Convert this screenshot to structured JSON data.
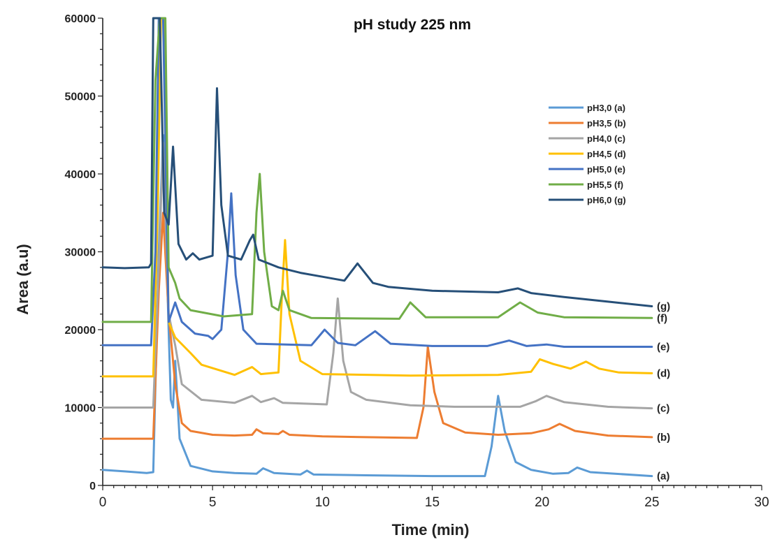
{
  "chart_data": {
    "type": "line",
    "title": "pH study 225 nm",
    "xlabel": "Time (min)",
    "ylabel": "Area (a.u)",
    "xlim": [
      0,
      30
    ],
    "ylim": [
      0,
      60000
    ],
    "xticks": [
      "0",
      "5",
      "10",
      "15",
      "20",
      "25",
      "30"
    ],
    "yticks": [
      "0",
      "10000",
      "20000",
      "30000",
      "40000",
      "50000",
      "60000"
    ],
    "legend_position": "top-right",
    "grid": false,
    "series": [
      {
        "name": "pH3,0 (a)",
        "label": "(a)",
        "color": "#5B9BD5",
        "points": [
          [
            0,
            2000
          ],
          [
            1,
            1800
          ],
          [
            2,
            1600
          ],
          [
            2.3,
            1700
          ],
          [
            2.55,
            30000
          ],
          [
            2.75,
            45000
          ],
          [
            3.0,
            20000
          ],
          [
            3.1,
            11000
          ],
          [
            3.2,
            10000
          ],
          [
            3.3,
            16000
          ],
          [
            3.5,
            6000
          ],
          [
            4.0,
            2500
          ],
          [
            5.0,
            1800
          ],
          [
            6.0,
            1600
          ],
          [
            7.0,
            1500
          ],
          [
            7.3,
            2200
          ],
          [
            7.8,
            1600
          ],
          [
            9.0,
            1400
          ],
          [
            9.3,
            1900
          ],
          [
            9.6,
            1400
          ],
          [
            12,
            1300
          ],
          [
            15,
            1200
          ],
          [
            17.4,
            1200
          ],
          [
            17.7,
            5000
          ],
          [
            18.0,
            11500
          ],
          [
            18.3,
            7000
          ],
          [
            18.8,
            3000
          ],
          [
            19.5,
            2000
          ],
          [
            20.5,
            1500
          ],
          [
            21.2,
            1600
          ],
          [
            21.6,
            2300
          ],
          [
            22.2,
            1700
          ],
          [
            25,
            1200
          ]
        ]
      },
      {
        "name": "pH3,5 (b)",
        "label": "(b)",
        "color": "#ED7D31",
        "points": [
          [
            0,
            6000
          ],
          [
            1,
            6000
          ],
          [
            2.3,
            6000
          ],
          [
            2.55,
            25000
          ],
          [
            2.75,
            35000
          ],
          [
            3.0,
            22000
          ],
          [
            3.3,
            13000
          ],
          [
            3.6,
            8000
          ],
          [
            4.0,
            7000
          ],
          [
            5,
            6500
          ],
          [
            6,
            6400
          ],
          [
            6.8,
            6500
          ],
          [
            7.0,
            7200
          ],
          [
            7.3,
            6700
          ],
          [
            8.0,
            6600
          ],
          [
            8.2,
            7000
          ],
          [
            8.5,
            6500
          ],
          [
            10,
            6300
          ],
          [
            12,
            6200
          ],
          [
            14.3,
            6100
          ],
          [
            14.6,
            10000
          ],
          [
            14.8,
            17800
          ],
          [
            15.1,
            12000
          ],
          [
            15.5,
            8000
          ],
          [
            16.5,
            6800
          ],
          [
            18,
            6500
          ],
          [
            19.5,
            6700
          ],
          [
            20.3,
            7200
          ],
          [
            20.8,
            7900
          ],
          [
            21.5,
            7000
          ],
          [
            23,
            6400
          ],
          [
            25,
            6200
          ]
        ]
      },
      {
        "name": "pH4,0 (c)",
        "label": "(c)",
        "color": "#A5A5A5",
        "points": [
          [
            0,
            10000
          ],
          [
            1,
            10000
          ],
          [
            2.3,
            10000
          ],
          [
            2.55,
            28000
          ],
          [
            2.75,
            44000
          ],
          [
            3.0,
            22000
          ],
          [
            3.3,
            18000
          ],
          [
            3.6,
            13000
          ],
          [
            4.5,
            11000
          ],
          [
            6.0,
            10600
          ],
          [
            6.8,
            11500
          ],
          [
            7.2,
            10700
          ],
          [
            7.8,
            11200
          ],
          [
            8.2,
            10600
          ],
          [
            10.2,
            10400
          ],
          [
            10.5,
            17000
          ],
          [
            10.7,
            24000
          ],
          [
            10.95,
            16000
          ],
          [
            11.3,
            12000
          ],
          [
            12,
            11000
          ],
          [
            14,
            10300
          ],
          [
            16,
            10100
          ],
          [
            19,
            10100
          ],
          [
            19.7,
            10800
          ],
          [
            20.2,
            11500
          ],
          [
            21,
            10700
          ],
          [
            23,
            10100
          ],
          [
            25,
            9900
          ]
        ]
      },
      {
        "name": "pH4,5 (d)",
        "label": "(d)",
        "color": "#FFC000",
        "points": [
          [
            0,
            14000
          ],
          [
            1,
            14000
          ],
          [
            2.3,
            14000
          ],
          [
            2.5,
            35000
          ],
          [
            2.65,
            60000
          ],
          [
            2.8,
            60000
          ],
          [
            3.0,
            21000
          ],
          [
            3.3,
            19000
          ],
          [
            4.0,
            17000
          ],
          [
            4.5,
            15500
          ],
          [
            6.0,
            14200
          ],
          [
            6.8,
            15200
          ],
          [
            7.2,
            14300
          ],
          [
            8.0,
            14500
          ],
          [
            8.15,
            24000
          ],
          [
            8.3,
            31500
          ],
          [
            8.5,
            22000
          ],
          [
            9.0,
            16000
          ],
          [
            10,
            14300
          ],
          [
            14,
            14100
          ],
          [
            18,
            14200
          ],
          [
            19.5,
            14600
          ],
          [
            19.9,
            16200
          ],
          [
            20.5,
            15600
          ],
          [
            21.3,
            15000
          ],
          [
            22.0,
            15900
          ],
          [
            22.6,
            15000
          ],
          [
            23.5,
            14500
          ],
          [
            25,
            14400
          ]
        ]
      },
      {
        "name": "pH5,0 (e)",
        "label": "(e)",
        "color": "#4472C4",
        "points": [
          [
            0,
            18000
          ],
          [
            1,
            18000
          ],
          [
            2.2,
            18000
          ],
          [
            2.4,
            30000
          ],
          [
            2.55,
            60000
          ],
          [
            2.75,
            60000
          ],
          [
            3.0,
            21000
          ],
          [
            3.3,
            23500
          ],
          [
            3.6,
            21000
          ],
          [
            4.2,
            19500
          ],
          [
            4.8,
            19200
          ],
          [
            5.0,
            18800
          ],
          [
            5.4,
            20000
          ],
          [
            5.7,
            30000
          ],
          [
            5.85,
            37500
          ],
          [
            6.05,
            27000
          ],
          [
            6.4,
            20000
          ],
          [
            7.0,
            18200
          ],
          [
            9.5,
            18000
          ],
          [
            10.1,
            20000
          ],
          [
            10.7,
            18300
          ],
          [
            11.5,
            18000
          ],
          [
            12.4,
            19800
          ],
          [
            13.1,
            18200
          ],
          [
            15,
            17900
          ],
          [
            17.5,
            17900
          ],
          [
            18.5,
            18600
          ],
          [
            19.3,
            17900
          ],
          [
            20.2,
            18100
          ],
          [
            21,
            17800
          ],
          [
            25,
            17800
          ]
        ]
      },
      {
        "name": "pH5,5 (f)",
        "label": "(f)",
        "color": "#70AD47",
        "points": [
          [
            0,
            21000
          ],
          [
            1,
            21000
          ],
          [
            2.2,
            21000
          ],
          [
            2.4,
            52000
          ],
          [
            2.6,
            60000
          ],
          [
            2.85,
            60000
          ],
          [
            3.0,
            28000
          ],
          [
            3.3,
            26000
          ],
          [
            3.5,
            24000
          ],
          [
            4.0,
            22500
          ],
          [
            5.5,
            21700
          ],
          [
            6.8,
            22000
          ],
          [
            7.0,
            35000
          ],
          [
            7.15,
            40000
          ],
          [
            7.35,
            30000
          ],
          [
            7.7,
            23000
          ],
          [
            8.0,
            22500
          ],
          [
            8.2,
            25000
          ],
          [
            8.5,
            22500
          ],
          [
            9.5,
            21500
          ],
          [
            13.5,
            21400
          ],
          [
            14.0,
            23500
          ],
          [
            14.7,
            21600
          ],
          [
            18,
            21600
          ],
          [
            19.0,
            23500
          ],
          [
            19.8,
            22200
          ],
          [
            21,
            21600
          ],
          [
            25,
            21500
          ]
        ]
      },
      {
        "name": "pH6,0 (g)",
        "label": "(g)",
        "color": "#264F78",
        "points": [
          [
            0,
            28000
          ],
          [
            1,
            27900
          ],
          [
            2.1,
            28000
          ],
          [
            2.2,
            28500
          ],
          [
            2.3,
            60000
          ],
          [
            2.6,
            60000
          ],
          [
            2.8,
            35000
          ],
          [
            3.0,
            33500
          ],
          [
            3.2,
            43500
          ],
          [
            3.45,
            31000
          ],
          [
            3.8,
            29000
          ],
          [
            4.1,
            29800
          ],
          [
            4.4,
            29000
          ],
          [
            5.0,
            29500
          ],
          [
            5.2,
            51000
          ],
          [
            5.4,
            36000
          ],
          [
            5.7,
            29500
          ],
          [
            6.3,
            29000
          ],
          [
            6.7,
            31500
          ],
          [
            6.85,
            32200
          ],
          [
            7.1,
            29000
          ],
          [
            8,
            28000
          ],
          [
            9,
            27300
          ],
          [
            10,
            26800
          ],
          [
            11,
            26300
          ],
          [
            11.6,
            28500
          ],
          [
            12.3,
            26000
          ],
          [
            13,
            25500
          ],
          [
            15,
            25000
          ],
          [
            18,
            24800
          ],
          [
            18.9,
            25300
          ],
          [
            19.5,
            24700
          ],
          [
            21,
            24200
          ],
          [
            23,
            23600
          ],
          [
            25,
            23000
          ]
        ]
      }
    ]
  },
  "legend": {
    "items": [
      "pH3,0 (a)",
      "pH3,5 (b)",
      "pH4,0 (c)",
      "pH4,5 (d)",
      "pH5,0 (e)",
      "pH5,5 (f)",
      "pH6,0 (g)"
    ]
  }
}
